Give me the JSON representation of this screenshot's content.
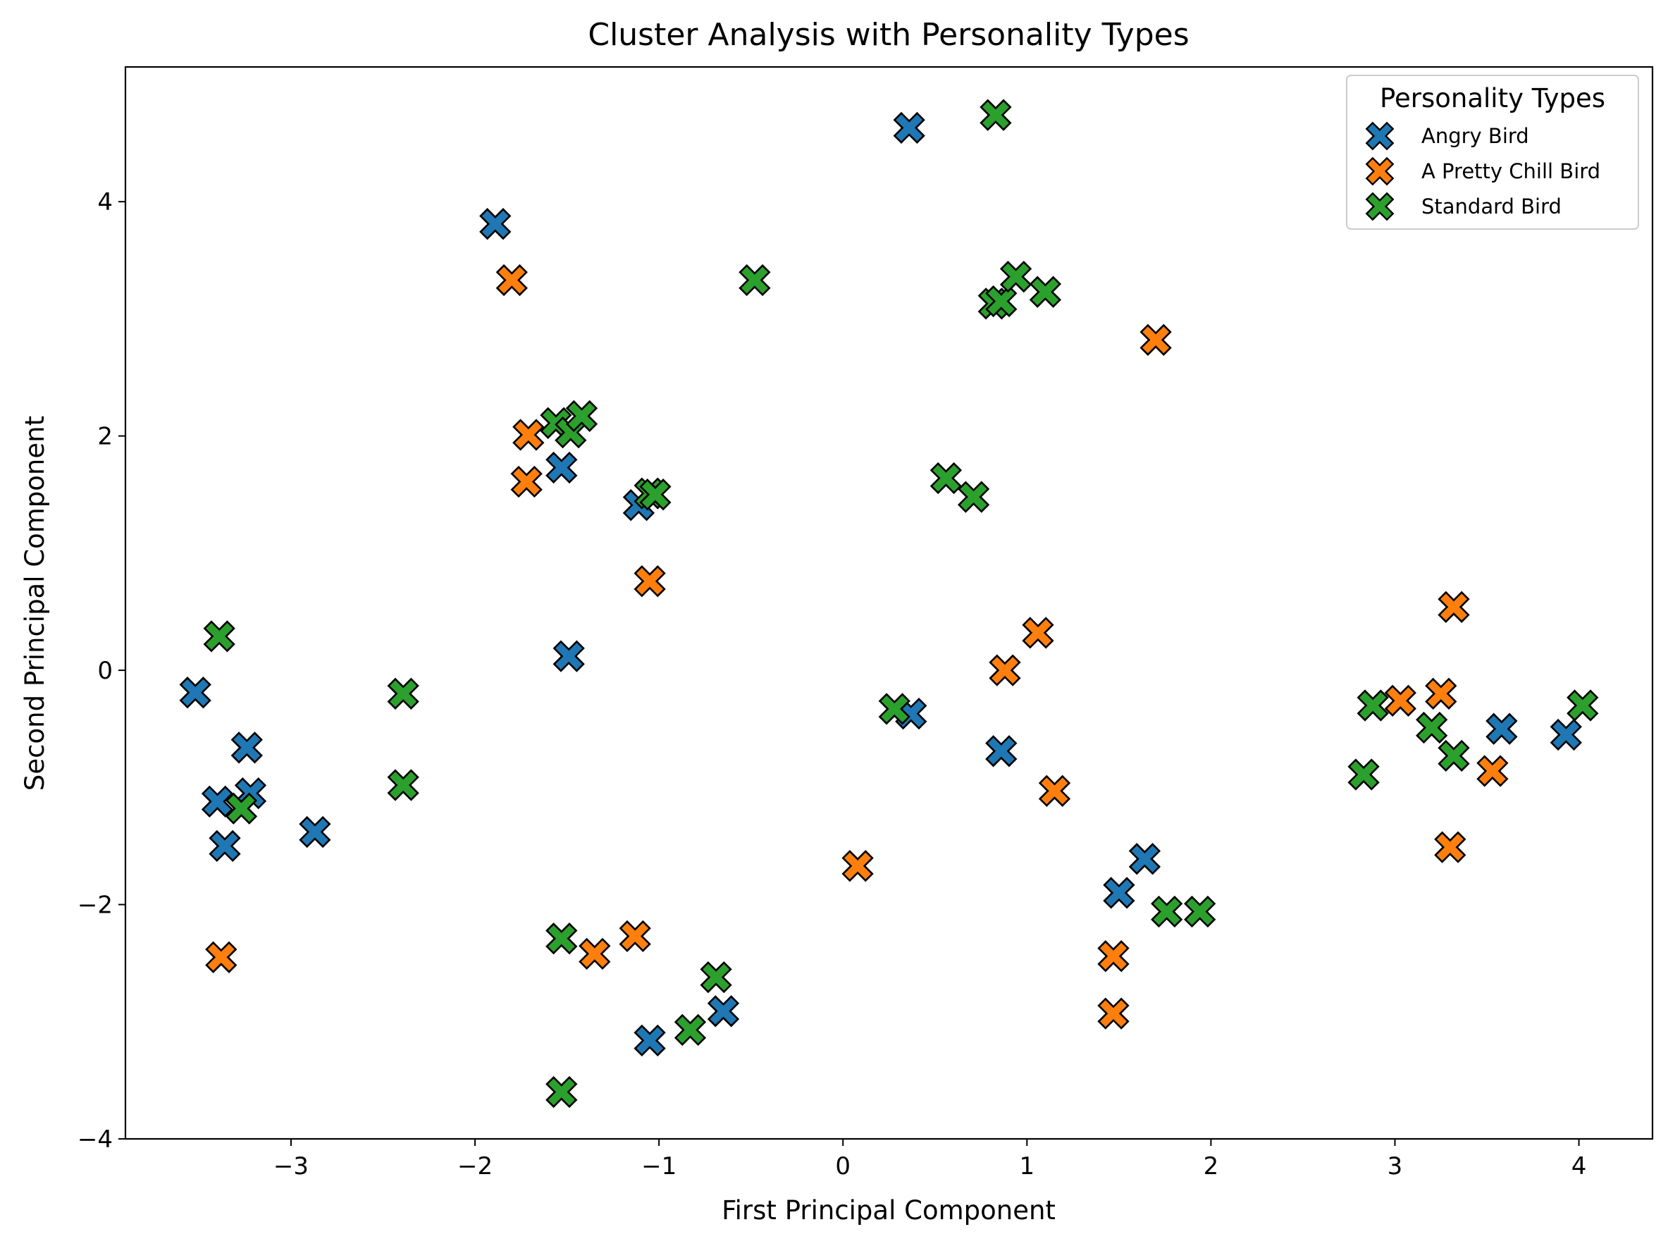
{
  "chart_data": {
    "type": "scatter",
    "title": "Cluster Analysis with Personality Types",
    "xlabel": "First Principal Component",
    "ylabel": "Second Principal Component",
    "xlim": [
      -3.9,
      4.4
    ],
    "ylim": [
      -4.0,
      5.15
    ],
    "xticks": [
      -3,
      -2,
      -1,
      0,
      1,
      2,
      3,
      4
    ],
    "yticks": [
      -4,
      -2,
      0,
      2,
      4
    ],
    "xtick_labels": [
      "−3",
      "−2",
      "−1",
      "0",
      "1",
      "2",
      "3",
      "4"
    ],
    "ytick_labels": [
      "−4",
      "−2",
      "0",
      "2",
      "4"
    ],
    "grid": false,
    "marker": "X",
    "legend": {
      "title": "Personality Types",
      "position": "top-right"
    },
    "series": [
      {
        "name": "Angry Bird",
        "color": "#1f77b4",
        "points": [
          [
            -3.52,
            -0.19
          ],
          [
            -3.4,
            -1.12
          ],
          [
            -3.36,
            -1.5
          ],
          [
            -3.24,
            -0.66
          ],
          [
            -3.22,
            -1.05
          ],
          [
            -2.87,
            -1.38
          ],
          [
            -1.89,
            3.81
          ],
          [
            -1.53,
            1.73
          ],
          [
            -1.49,
            0.12
          ],
          [
            -1.11,
            1.41
          ],
          [
            -1.05,
            -3.16
          ],
          [
            -0.65,
            -2.91
          ],
          [
            0.36,
            4.63
          ],
          [
            0.37,
            -0.37
          ],
          [
            0.86,
            -0.69
          ],
          [
            1.5,
            -1.9
          ],
          [
            1.64,
            -1.61
          ],
          [
            3.58,
            -0.5
          ],
          [
            3.93,
            -0.55
          ]
        ]
      },
      {
        "name": "A Pretty Chill Bird",
        "color": "#ff7f0e",
        "points": [
          [
            -3.38,
            -2.45
          ],
          [
            -1.8,
            3.33
          ],
          [
            -1.71,
            2.01
          ],
          [
            -1.72,
            1.61
          ],
          [
            -1.35,
            -2.42
          ],
          [
            -1.13,
            -2.27
          ],
          [
            -1.05,
            0.76
          ],
          [
            0.08,
            -1.67
          ],
          [
            0.88,
            0.0
          ],
          [
            1.06,
            0.32
          ],
          [
            1.15,
            -1.03
          ],
          [
            1.47,
            -2.44
          ],
          [
            1.47,
            -2.93
          ],
          [
            1.7,
            2.82
          ],
          [
            3.03,
            -0.26
          ],
          [
            3.25,
            -0.2
          ],
          [
            3.3,
            -1.51
          ],
          [
            3.32,
            0.54
          ],
          [
            3.53,
            -0.86
          ]
        ]
      },
      {
        "name": "Standard Bird",
        "color": "#2ca02c",
        "points": [
          [
            -3.39,
            0.29
          ],
          [
            -3.27,
            -1.18
          ],
          [
            -2.39,
            -0.2
          ],
          [
            -2.39,
            -0.98
          ],
          [
            -1.56,
            2.11
          ],
          [
            -1.48,
            2.03
          ],
          [
            -1.42,
            2.17
          ],
          [
            -1.53,
            -2.29
          ],
          [
            -1.53,
            -3.6
          ],
          [
            -1.05,
            1.51
          ],
          [
            -1.02,
            1.5
          ],
          [
            -0.83,
            -3.07
          ],
          [
            -0.69,
            -2.62
          ],
          [
            -0.48,
            3.33
          ],
          [
            0.28,
            -0.33
          ],
          [
            0.56,
            1.64
          ],
          [
            0.71,
            1.48
          ],
          [
            0.82,
            3.13
          ],
          [
            0.86,
            3.15
          ],
          [
            0.83,
            4.74
          ],
          [
            0.94,
            3.36
          ],
          [
            1.1,
            3.23
          ],
          [
            1.76,
            -2.06
          ],
          [
            1.94,
            -2.06
          ],
          [
            2.83,
            -0.89
          ],
          [
            2.88,
            -0.3
          ],
          [
            3.2,
            -0.49
          ],
          [
            3.32,
            -0.73
          ],
          [
            4.02,
            -0.3
          ]
        ]
      }
    ]
  }
}
